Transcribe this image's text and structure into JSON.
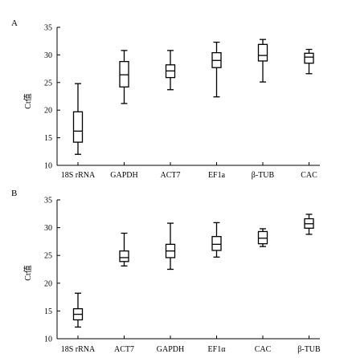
{
  "chart_data": [
    {
      "panel_label": "A",
      "type": "box",
      "ylabel": "Ct值",
      "ylim": [
        10,
        35
      ],
      "yticks": [
        10,
        15,
        20,
        25,
        30,
        35
      ],
      "categories": [
        "18S rRNA",
        "GAPDH",
        "ACT7",
        "EF1a",
        "β-TUB",
        "CAC"
      ],
      "boxes": [
        {
          "min": 12.0,
          "q1": 14.2,
          "median": 16.2,
          "q3": 19.7,
          "max": 24.8
        },
        {
          "min": 21.2,
          "q1": 24.2,
          "median": 26.4,
          "q3": 28.8,
          "max": 30.8
        },
        {
          "min": 23.7,
          "q1": 25.9,
          "median": 27.1,
          "q3": 28.2,
          "max": 30.8
        },
        {
          "min": 22.4,
          "q1": 27.7,
          "median": 29.0,
          "q3": 30.4,
          "max": 32.3
        },
        {
          "min": 25.1,
          "q1": 28.9,
          "median": 29.9,
          "q3": 31.9,
          "max": 32.8
        },
        {
          "min": 26.6,
          "q1": 28.5,
          "median": 29.6,
          "q3": 30.3,
          "max": 31.0
        }
      ]
    },
    {
      "panel_label": "B",
      "type": "box",
      "ylabel": "Ct值",
      "ylim": [
        10,
        35
      ],
      "yticks": [
        10,
        15,
        20,
        25,
        30,
        35
      ],
      "categories": [
        "18S rRNA",
        "ACT7",
        "GAPDH",
        "EF1α",
        "CAC",
        "β-TUB"
      ],
      "boxes": [
        {
          "min": 12.1,
          "q1": 13.4,
          "median": 14.4,
          "q3": 15.4,
          "max": 18.2
        },
        {
          "min": 23.1,
          "q1": 23.9,
          "median": 24.6,
          "q3": 25.8,
          "max": 29.0
        },
        {
          "min": 22.5,
          "q1": 24.6,
          "median": 25.8,
          "q3": 27.0,
          "max": 30.8
        },
        {
          "min": 24.7,
          "q1": 25.9,
          "median": 27.0,
          "q3": 28.4,
          "max": 30.9
        },
        {
          "min": 26.6,
          "q1": 27.1,
          "median": 28.1,
          "q3": 29.3,
          "max": 29.8
        },
        {
          "min": 28.8,
          "q1": 29.9,
          "median": 30.7,
          "q3": 31.6,
          "max": 32.4
        }
      ]
    }
  ]
}
